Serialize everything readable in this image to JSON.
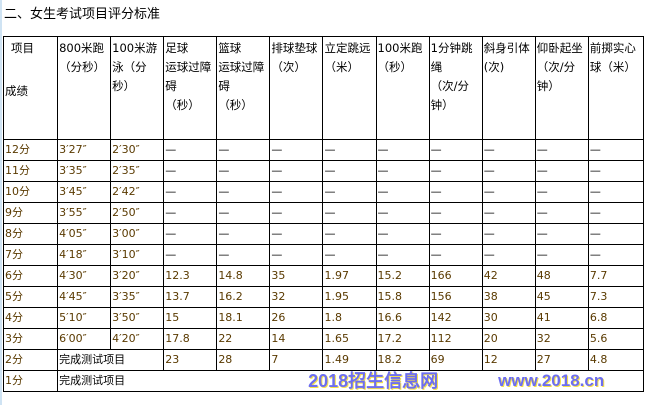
{
  "title": "二、女生考试项目评分标准",
  "headers": [
    [
      "项目",
      "成绩"
    ],
    [
      "800米跑",
      "（分秒）"
    ],
    [
      "100米游泳（分秒）"
    ],
    [
      "足球",
      "运球过障碍",
      "（秒）"
    ],
    [
      "篮球",
      "运球过障碍",
      "（秒）"
    ],
    [
      "排球垫球",
      "（次）"
    ],
    [
      "立定跳远",
      "（米）"
    ],
    [
      "100米跑",
      "（秒）"
    ],
    [
      "1分钟跳绳",
      "（次/分钟）"
    ],
    [
      "斜身引体",
      "(次)"
    ],
    [
      "仰卧起坐",
      "（次/分钟）"
    ],
    [
      "前掷实心球（米）"
    ]
  ],
  "rows": [
    [
      "12分",
      "3′27″",
      "2′30″",
      "—",
      "—",
      "—",
      "—",
      "—",
      "—",
      "—",
      "—",
      "—"
    ],
    [
      "11分",
      "3′35″",
      "2′35″",
      "—",
      "—",
      "—",
      "—",
      "—",
      "—",
      "—",
      "—",
      "—"
    ],
    [
      "10分",
      "3′45″",
      "2′42″",
      "—",
      "—",
      "—",
      "—",
      "—",
      "—",
      "—",
      "—",
      "—"
    ],
    [
      "9分",
      "3′55″",
      "2′50″",
      "—",
      "—",
      "—",
      "—",
      "—",
      "—",
      "—",
      "—",
      "—"
    ],
    [
      "8分",
      "4′05″",
      "3′00″",
      "—",
      "—",
      "—",
      "—",
      "—",
      "—",
      "—",
      "—",
      "—"
    ],
    [
      "7分",
      "4′18″",
      "3′10″",
      "—",
      "—",
      "—",
      "—",
      "—",
      "—",
      "—",
      "—",
      "—"
    ],
    [
      "6分",
      "4′30″",
      "3′20″",
      "12.3",
      "14.8",
      "35",
      "1.97",
      "15.2",
      "166",
      "42",
      "48",
      "7.7"
    ],
    [
      "5分",
      "4′45″",
      "3′35″",
      "13.7",
      "16.2",
      "32",
      "1.95",
      "15.8",
      "156",
      "38",
      "45",
      "7.3"
    ],
    [
      "4分",
      "5′10″",
      "3′50″",
      "15",
      "18.1",
      "26",
      "1.8",
      "16.6",
      "142",
      "30",
      "41",
      "6.8"
    ],
    [
      "3分",
      "6′00″",
      "4′20″",
      "17.8",
      "22",
      "14",
      "1.65",
      "17.2",
      "112",
      "20",
      "32",
      "5.6"
    ]
  ],
  "row2": {
    "score": "2分",
    "merged": "完成测试项目",
    "values": [
      "23",
      "28",
      "7",
      "1.49",
      "18.2",
      "69",
      "12",
      "27",
      "4.8"
    ]
  },
  "row1": {
    "score": "1分",
    "merged": "完成测试项目"
  },
  "watermark": {
    "line1": "2018招生信息网",
    "line2": "www.2018.cn"
  }
}
